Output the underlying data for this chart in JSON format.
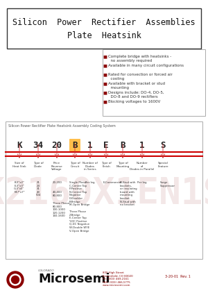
{
  "title_line1": "Silicon  Power  Rectifier  Assemblies",
  "title_line2": "Plate  Heatsink",
  "bullet_color": "#8B0000",
  "bullet_points": [
    "Complete bridge with heatsinks -\n  no assembly required",
    "Available in many circuit configurations",
    "Rated for convection or forced air\n  cooling",
    "Available with bracket or stud\n  mounting",
    "Designs include: DO-4, DO-5,\n  DO-8 and DO-9 rectifiers",
    "Blocking voltages to 1600V"
  ],
  "coding_title": "Silicon Power Rectifier Plate Heatsink Assembly Coding System",
  "coding_letters": [
    "K",
    "34",
    "20",
    "B",
    "1",
    "E",
    "B",
    "1",
    "S"
  ],
  "coding_labels": [
    "Size of\nHeat Sink",
    "Type of\nDiode",
    "Price\nReverse\nVoltage",
    "Type of\nCircuit",
    "Number of\nDiodes\nin Series",
    "Type of\nFinish",
    "Type of\nMounting",
    "Number\nof\nDiodes in Parallel",
    "Special\nFeature"
  ],
  "highlight_color": "#FFA500",
  "red_line_color": "#CC0000",
  "bg_color": "#FFFFFF",
  "microsemi_color": "#8B0000",
  "footer_text": "800 High Street\nBroomfield, CO 80020\nPh: (303) 469-2161\nFAX: (303) 466-5775\nwww.microsemi.com",
  "revision_text": "3-20-01  Rev. 1"
}
